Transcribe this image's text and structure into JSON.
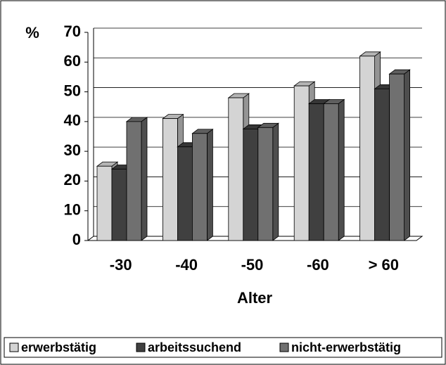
{
  "chart_data": {
    "type": "bar3d",
    "y_label": "%",
    "x_label": "Alter",
    "categories": [
      "-30",
      "-40",
      "-50",
      "-60",
      "> 60"
    ],
    "series": [
      {
        "name": "erwerbstätig",
        "color": "#d4d4d4",
        "values": [
          25,
          41,
          48,
          52,
          62
        ]
      },
      {
        "name": "arbeitssuchend",
        "color": "#404040",
        "values": [
          24,
          31.5,
          37.5,
          46,
          51
        ]
      },
      {
        "name": "nicht-erwerbstätig",
        "color": "#707070",
        "values": [
          40,
          36,
          38,
          46,
          56
        ]
      }
    ],
    "ylim": [
      0,
      70
    ],
    "yticks": [
      0,
      10,
      20,
      30,
      40,
      50,
      60,
      70
    ],
    "grid": true,
    "legend": "bottom"
  }
}
